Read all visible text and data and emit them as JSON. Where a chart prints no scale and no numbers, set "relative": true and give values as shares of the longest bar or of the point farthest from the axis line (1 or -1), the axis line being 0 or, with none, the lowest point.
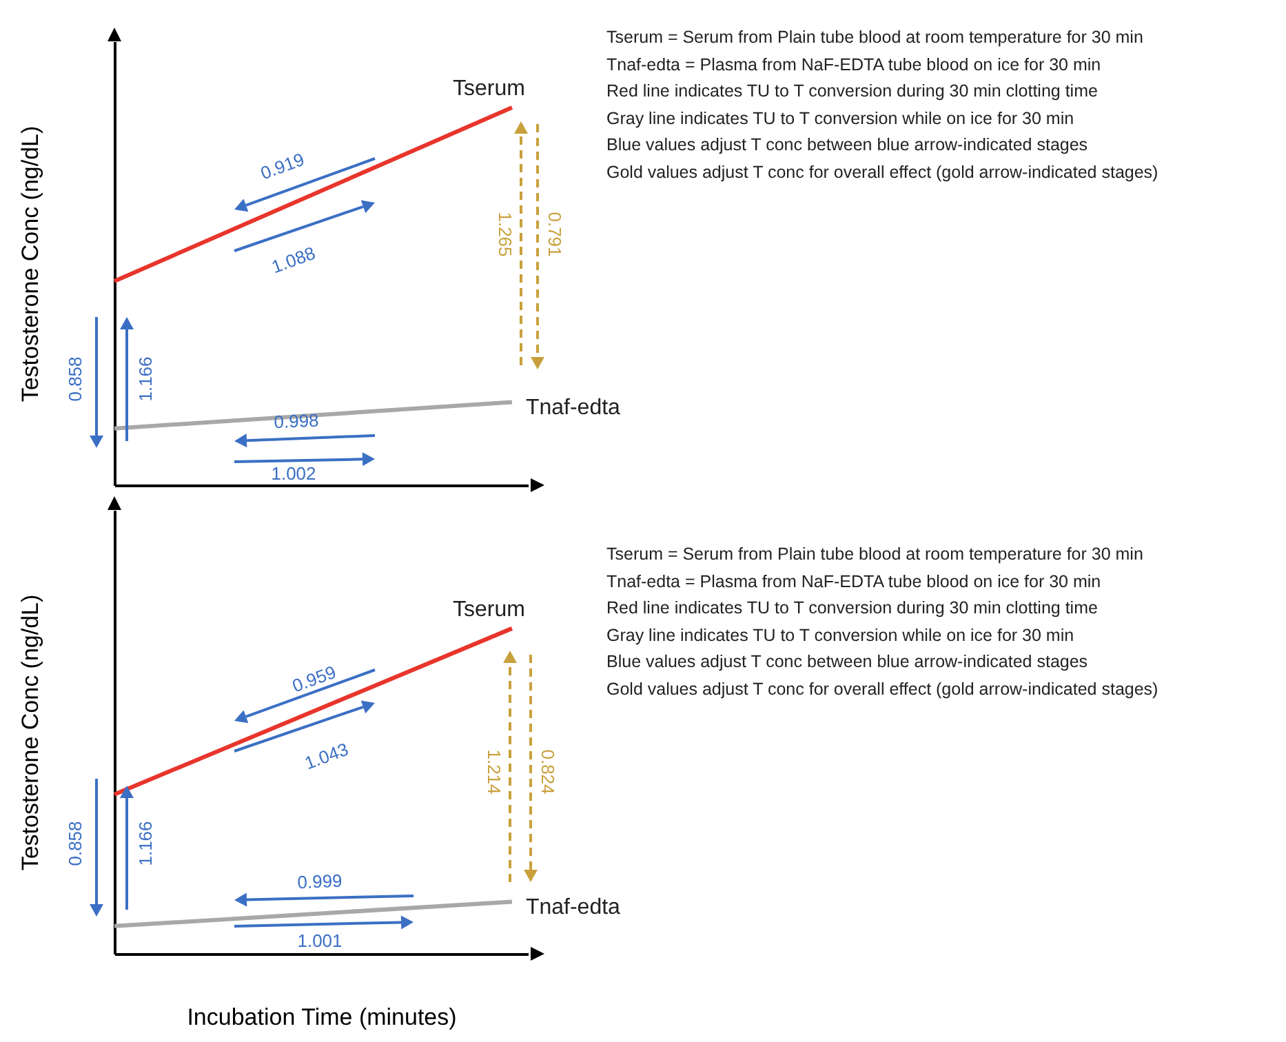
{
  "chart_data": [
    {
      "type": "line",
      "relative": true,
      "ylabel": "Testosterone Conc (ng/dL)",
      "categories": [
        null,
        null
      ],
      "series": [
        {
          "name": "Tserum",
          "color": "#e8352b",
          "values": [
            0.54,
            1
          ]
        },
        {
          "name": "Tnaf-edta",
          "color": "#a8a8a8",
          "values": [
            0.15,
            0.22
          ]
        }
      ],
      "annotations": [
        "0.919",
        "1.088",
        "0.858",
        "1.166",
        "0.998",
        "1.002",
        "1.265",
        "0.791",
        "Tserum = Serum from Plain tube blood at room temperature for 30 min",
        "Tnaf-edta = Plasma from NaF-EDTA tube blood on ice for 30 min",
        "Red line indicates TU to T conversion during 30 min clotting time",
        "Gray line indicates TU to T conversion while on ice for 30 min",
        "Blue values adjust T conc between blue arrow-indicated stages",
        "Gold values adjust T conc for overall effect (gold arrow-indicated stages)"
      ]
    },
    {
      "type": "line",
      "relative": true,
      "ylabel": "Testosterone Conc (ng/dL)",
      "xlabel": "Incubation Time (minutes)",
      "categories": [
        null,
        null
      ],
      "series": [
        {
          "name": "Tserum",
          "color": "#e8352b",
          "values": [
            0.49,
            1
          ]
        },
        {
          "name": "Tnaf-edta",
          "color": "#a8a8a8",
          "values": [
            0.085,
            0.16
          ]
        }
      ],
      "annotations": [
        "0.959",
        "1.043",
        "0.858",
        "1.166",
        "0.999",
        "1.001",
        "1.214",
        "0.824",
        "Tserum = Serum from Plain tube blood at room temperature for 30 min",
        "Tnaf-edta = Plasma from NaF-EDTA tube blood on ice for 30 min",
        "Red line indicates TU to T conversion during 30 min clotting time",
        "Gray line indicates TU to T conversion while on ice for 30 min",
        "Blue values adjust T conc between blue arrow-indicated stages",
        "Gold values adjust T conc for overall effect (gold arrow-indicated stages)"
      ]
    }
  ]
}
